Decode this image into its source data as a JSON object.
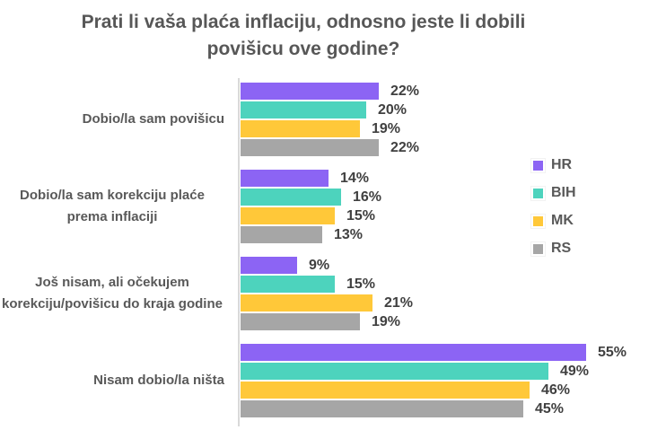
{
  "page": {
    "background_color": "#ffffff"
  },
  "title": {
    "lines": [
      "Prati li vaša plaća inflaciju, odnosno jeste li dobili",
      "povišicu ove godine?"
    ],
    "color": "#575757"
  },
  "chart_data": {
    "type": "bar",
    "orientation": "horizontal",
    "title": "Prati li vaša plaća inflaciju, odnosno jeste li dobili povišicu ove godine?",
    "categories": [
      "Dobio/la sam povišicu",
      "Dobio/la sam korekciju plaće prema inflaciji",
      "Još nisam, ali očekujem korekciju/povišicu do kraja godine",
      "Nisam dobio/la ništa"
    ],
    "series": [
      {
        "name": "HR",
        "color": "#8c64f4",
        "values": [
          22,
          14,
          9,
          55
        ]
      },
      {
        "name": "BIH",
        "color": "#4dd3bd",
        "values": [
          20,
          16,
          15,
          49
        ]
      },
      {
        "name": "MK",
        "color": "#ffc839",
        "values": [
          19,
          15,
          21,
          46
        ]
      },
      {
        "name": "RS",
        "color": "#a6a6a6",
        "values": [
          22,
          13,
          19,
          45
        ]
      }
    ],
    "value_suffix": "%",
    "xlim": [
      0,
      60
    ],
    "xlabel": "",
    "ylabel": "",
    "grid": false,
    "legend_position": "right",
    "axis_color": "#d9d9d9",
    "value_label_color": "#404040",
    "category_label_color": "#595959"
  }
}
